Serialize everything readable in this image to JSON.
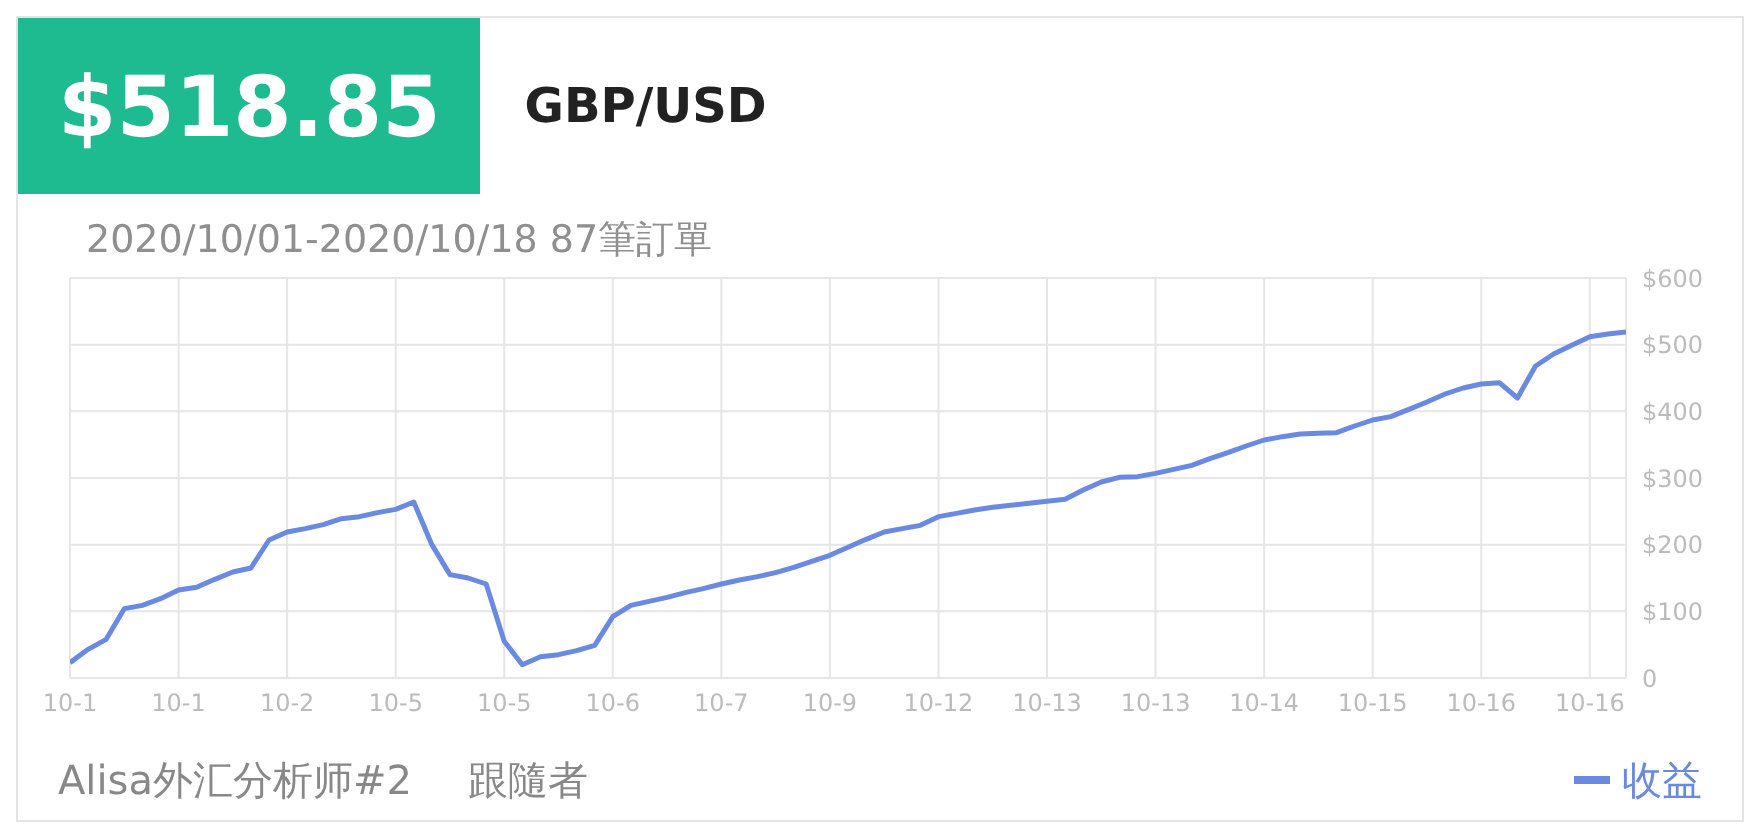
{
  "chart_data": {
    "type": "line",
    "title": "GBP/USD",
    "subtitle": "2020/10/01-2020/10/18 87筆訂單",
    "annotations": [
      "$518.85",
      "Alisa外汇分析师#2",
      "跟隨者"
    ],
    "categories": [
      "10-1",
      null,
      null,
      null,
      null,
      null,
      "10-1",
      null,
      null,
      null,
      null,
      null,
      "10-2",
      null,
      null,
      null,
      null,
      null,
      "10-5",
      null,
      null,
      null,
      null,
      null,
      "10-5",
      null,
      null,
      null,
      null,
      null,
      "10-6",
      null,
      null,
      null,
      null,
      null,
      "10-7",
      null,
      null,
      null,
      null,
      null,
      "10-9",
      null,
      null,
      null,
      null,
      null,
      "10-12",
      null,
      null,
      null,
      null,
      null,
      "10-13",
      null,
      null,
      null,
      null,
      null,
      "10-13",
      null,
      null,
      null,
      null,
      null,
      "10-14",
      null,
      null,
      null,
      null,
      null,
      "10-15",
      null,
      null,
      null,
      null,
      null,
      "10-16",
      null,
      null,
      null,
      null,
      null,
      "10-16",
      null,
      null
    ],
    "series": [
      {
        "name": "收益",
        "color": "#6a89e0",
        "values": [
          23,
          43,
          58,
          104,
          109,
          119,
          132,
          136,
          148,
          159,
          165,
          207,
          219,
          224,
          230,
          239,
          242,
          248,
          253,
          264,
          200,
          155,
          150,
          141,
          55,
          20,
          32,
          35,
          41,
          49,
          92,
          109,
          115,
          121,
          128,
          134,
          141,
          147,
          152,
          158,
          166,
          175,
          184,
          196,
          208,
          219,
          224,
          229,
          242,
          247,
          252,
          256,
          259,
          262,
          265,
          268,
          282,
          294,
          301,
          302,
          307,
          313,
          319,
          329,
          338,
          348,
          357,
          362,
          366,
          367,
          368,
          378,
          387,
          392,
          403,
          414,
          426,
          435,
          441,
          443,
          420,
          468,
          486,
          499,
          512,
          516,
          519
        ]
      }
    ],
    "ylim": [
      0,
      600
    ],
    "yticks": [
      0,
      {
        "value": 100,
        "label": "$100"
      },
      {
        "value": 200,
        "label": "$200"
      },
      {
        "value": 300,
        "label": "$300"
      },
      {
        "value": 400,
        "label": "$400"
      },
      {
        "value": 500,
        "label": "$500"
      },
      {
        "value": 600,
        "label": "$600"
      }
    ],
    "grid": true,
    "legend": "bottom right",
    "marker": "none",
    "line_style": "solid"
  }
}
